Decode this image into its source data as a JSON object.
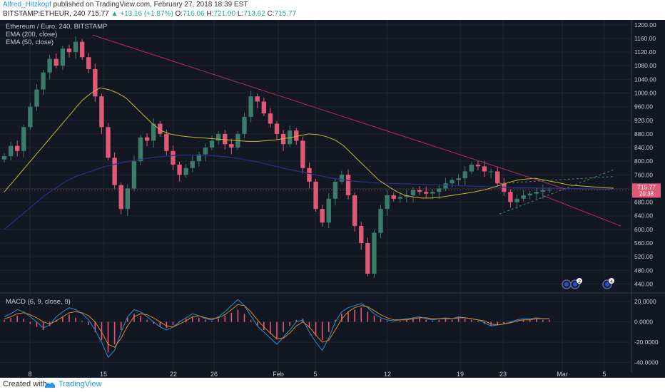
{
  "header": {
    "author": "Alfred_Hitzkopf",
    "published": "published on TradingView.com, February 27, 2018 18:39 EST",
    "symbol": "BITSTAMP:ETHEUR, 240",
    "last": "715.77",
    "change": "▲ +13.16 (+1.87%)",
    "o_label": "O:",
    "o_val": "716.06",
    "h_label": "H:",
    "h_val": "721.00",
    "l_label": "L:",
    "l_val": "713.62",
    "c_label": "C:",
    "c_val": "715.77"
  },
  "footer": {
    "created_with": "Created with",
    "brand": "TradingView"
  },
  "colors": {
    "background": "#131722",
    "grid": "#1f2433",
    "up": "#3a7d6a",
    "down": "#e05a78",
    "ema50": "#c9b82b",
    "ema200": "#2b2f8f",
    "macd": "#2a8fd6",
    "signal": "#d88a2a",
    "trend": "#b03060",
    "support": "#556070",
    "price_label": "#e05a78"
  },
  "chart_data": [
    {
      "type": "candlestick",
      "title": "Ethereum / Euro, 240, BITSTAMP",
      "indicators": [
        "EMA (200, close)",
        "EMA (50, close)"
      ],
      "ylim": [
        420,
        1210
      ],
      "yticks": [
        "1200.00",
        "1160.00",
        "1120.00",
        "1080.00",
        "1040.00",
        "1000.00",
        "960.00",
        "920.00",
        "880.00",
        "840.00",
        "800.00",
        "760.00",
        "720.00",
        "680.00",
        "640.00",
        "600.00",
        "560.00",
        "520.00",
        "480.00",
        "440.00"
      ],
      "xticks": [
        "8",
        "15",
        "22",
        "26",
        "Feb",
        "5",
        "12",
        "19",
        "23",
        "Mar",
        "5"
      ],
      "last_price": "715.77",
      "countdown": "20:38",
      "close_series": [
        815,
        845,
        830,
        900,
        960,
        1010,
        1060,
        1100,
        1080,
        1130,
        1120,
        1150,
        1105,
        1070,
        990,
        900,
        810,
        730,
        660,
        720,
        800,
        870,
        860,
        910,
        880,
        830,
        790,
        760,
        780,
        800,
        820,
        840,
        860,
        880,
        850,
        840,
        880,
        930,
        990,
        975,
        940,
        910,
        880,
        850,
        890,
        860,
        780,
        740,
        660,
        620,
        690,
        740,
        760,
        700,
        610,
        560,
        470,
        590,
        660,
        700,
        690,
        695,
        700,
        715,
        710,
        705,
        710,
        720,
        735,
        745,
        750,
        770,
        790,
        785,
        770,
        770,
        735,
        710,
        680,
        690,
        700,
        705,
        710,
        715,
        716
      ],
      "ema50": [
        710,
        740,
        770,
        800,
        830,
        860,
        890,
        920,
        950,
        980,
        1000,
        1015,
        1010,
        1000,
        985,
        960,
        935,
        910,
        890,
        880,
        875,
        872,
        870,
        868,
        866,
        864,
        862,
        860,
        858,
        858,
        860,
        862,
        866,
        870,
        875,
        880,
        878,
        872,
        862,
        845,
        820,
        795,
        770,
        745,
        728,
        712,
        700,
        695,
        692,
        692,
        694,
        698,
        702,
        706,
        710,
        715,
        722,
        730,
        738,
        745,
        748,
        750,
        745,
        740,
        735,
        730,
        728,
        726,
        724,
        722,
        721
      ],
      "ema200": [
        600,
        625,
        650,
        675,
        700,
        720,
        740,
        755,
        765,
        775,
        785,
        792,
        798,
        803,
        808,
        812,
        815,
        817,
        818,
        818,
        817,
        815,
        812,
        808,
        803,
        797,
        790,
        783,
        776,
        770,
        764,
        758,
        752,
        747,
        743,
        740,
        738,
        736,
        735,
        734,
        733,
        732,
        731,
        730,
        729,
        728,
        727,
        726,
        725,
        724,
        723,
        722,
        722,
        721,
        721,
        720,
        720,
        719,
        719,
        718,
        718
      ],
      "annotations": [
        "2",
        "4"
      ]
    },
    {
      "type": "macd",
      "title": "MACD (6, 9, close, 9)",
      "ylim": [
        -48,
        25
      ],
      "yticks": [
        "20.0000",
        "0.0000",
        "-20.0000",
        "-40.0000"
      ],
      "histogram": [
        2,
        4,
        6,
        3,
        -2,
        -5,
        -8,
        -4,
        2,
        5,
        7,
        4,
        1,
        -3,
        -10,
        -18,
        -30,
        -22,
        -8,
        4,
        8,
        6,
        2,
        -2,
        -5,
        -6,
        -3,
        1,
        3,
        5,
        4,
        2,
        1,
        3,
        6,
        9,
        12,
        8,
        2,
        -4,
        -8,
        -12,
        -16,
        -10,
        -4,
        2,
        3,
        -6,
        -14,
        -18,
        -10,
        2,
        8,
        10,
        12,
        14,
        10,
        6,
        3,
        1,
        0,
        1,
        2,
        3,
        4,
        2,
        1,
        2,
        3,
        2,
        4,
        3,
        2,
        1,
        -2,
        -4,
        -3,
        -2,
        -1,
        1,
        2,
        2,
        3,
        2,
        2
      ],
      "macd_line": [
        5,
        8,
        12,
        10,
        5,
        0,
        -6,
        -3,
        5,
        10,
        14,
        12,
        8,
        2,
        -8,
        -20,
        -35,
        -28,
        -10,
        5,
        12,
        10,
        5,
        0,
        -5,
        -8,
        -5,
        0,
        4,
        8,
        6,
        3,
        2,
        5,
        10,
        16,
        22,
        16,
        6,
        -4,
        -10,
        -16,
        -22,
        -15,
        -8,
        0,
        2,
        -10,
        -20,
        -28,
        -16,
        0,
        10,
        14,
        16,
        18,
        14,
        8,
        4,
        2,
        1,
        2,
        3,
        4,
        5,
        3,
        2,
        3,
        4,
        3,
        5,
        4,
        3,
        2,
        -1,
        -4,
        -3,
        -2,
        0,
        2,
        3,
        3,
        4,
        3,
        3
      ],
      "signal_line": [
        3,
        5,
        8,
        9,
        7,
        4,
        0,
        -2,
        1,
        5,
        9,
        10,
        9,
        6,
        0,
        -10,
        -22,
        -25,
        -16,
        -4,
        5,
        8,
        7,
        4,
        0,
        -4,
        -5,
        -2,
        1,
        5,
        6,
        4,
        3,
        4,
        7,
        12,
        17,
        16,
        10,
        2,
        -5,
        -11,
        -17,
        -16,
        -11,
        -4,
        0,
        -5,
        -13,
        -20,
        -18,
        -8,
        3,
        10,
        14,
        16,
        15,
        11,
        7,
        4,
        2,
        2,
        2,
        3,
        4,
        4,
        3,
        3,
        3,
        3,
        4,
        4,
        3,
        2,
        1,
        -2,
        -3,
        -2,
        -1,
        1,
        2,
        2,
        3,
        3,
        3
      ]
    }
  ]
}
